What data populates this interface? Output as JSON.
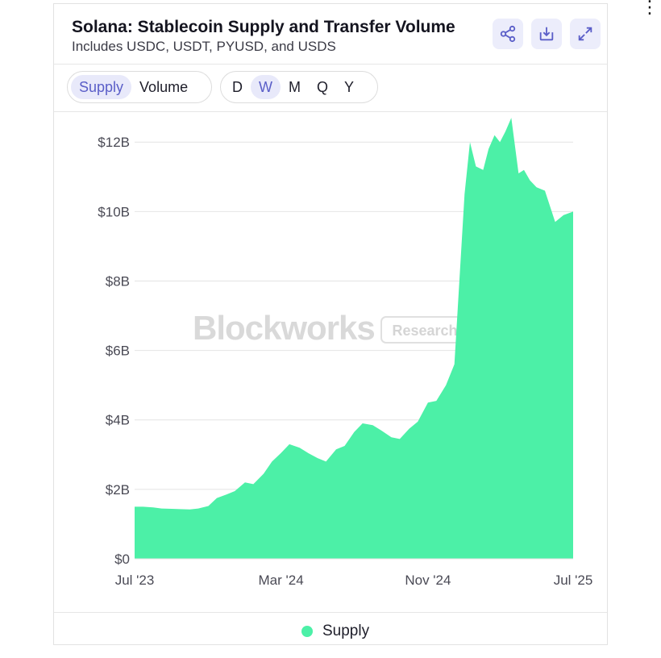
{
  "page_corner": "⋮",
  "header": {
    "title": "Solana: Stablecoin Supply and Transfer Volume",
    "subtitle": "Includes USDC, USDT, PYUSD, and USDS",
    "share_icon": "share-icon",
    "download_icon": "download-icon",
    "expand_icon": "expand-icon"
  },
  "controls": {
    "metric_tabs": [
      {
        "label": "Supply",
        "active": true
      },
      {
        "label": "Volume",
        "active": false
      }
    ],
    "interval_tabs": [
      {
        "label": "D",
        "active": false
      },
      {
        "label": "W",
        "active": true
      },
      {
        "label": "M",
        "active": false
      },
      {
        "label": "Q",
        "active": false
      },
      {
        "label": "Y",
        "active": false
      }
    ]
  },
  "watermark": {
    "brand": "Blockworks",
    "tag": "Research"
  },
  "colors": {
    "accent": "#5a5ec8",
    "series": "#4cf0a7",
    "tab_active_bg": "#e8e9fa",
    "icon_bg": "#ecedfb"
  },
  "chart_data": {
    "type": "area",
    "title": "Solana: Stablecoin Supply and Transfer Volume",
    "subtitle": "Includes USDC, USDT, PYUSD, and USDS",
    "xlabel": "",
    "ylabel": "",
    "x_ticks": [
      "Jul '23",
      "Mar '24",
      "Nov '24",
      "Jul '25"
    ],
    "y_ticks": [
      "$0",
      "$2B",
      "$4B",
      "$6B",
      "$8B",
      "$10B",
      "$12B"
    ],
    "y_unit": "billion USD",
    "ylim": [
      0,
      12.4
    ],
    "grid": "horizontal",
    "legend_position": "bottom-center",
    "series": [
      {
        "name": "Supply",
        "x": [
          "2023-07-01",
          "2023-07-15",
          "2023-08-01",
          "2023-08-15",
          "2023-09-01",
          "2023-09-15",
          "2023-10-01",
          "2023-10-15",
          "2023-11-01",
          "2023-11-15",
          "2023-12-01",
          "2023-12-15",
          "2024-01-01",
          "2024-01-15",
          "2024-02-01",
          "2024-02-15",
          "2024-03-01",
          "2024-03-15",
          "2024-04-01",
          "2024-04-15",
          "2024-05-01",
          "2024-05-15",
          "2024-06-01",
          "2024-06-15",
          "2024-07-01",
          "2024-07-15",
          "2024-08-01",
          "2024-08-15",
          "2024-09-01",
          "2024-09-15",
          "2024-10-01",
          "2024-10-15",
          "2024-11-01",
          "2024-11-15",
          "2024-12-01",
          "2024-12-15",
          "2025-01-01",
          "2025-01-10",
          "2025-01-20",
          "2025-02-01",
          "2025-02-10",
          "2025-02-20",
          "2025-03-01",
          "2025-03-10",
          "2025-03-20",
          "2025-04-01",
          "2025-04-10",
          "2025-04-20",
          "2025-05-01",
          "2025-05-15",
          "2025-06-01",
          "2025-06-15",
          "2025-07-01"
        ],
        "values": [
          1.5,
          1.5,
          1.48,
          1.45,
          1.44,
          1.43,
          1.42,
          1.45,
          1.52,
          1.75,
          1.85,
          1.95,
          2.2,
          2.15,
          2.45,
          2.8,
          3.05,
          3.3,
          3.2,
          3.05,
          2.9,
          2.8,
          3.15,
          3.25,
          3.65,
          3.9,
          3.85,
          3.7,
          3.5,
          3.45,
          3.75,
          3.95,
          4.5,
          4.55,
          5.0,
          5.6,
          10.5,
          12.0,
          11.3,
          11.2,
          11.8,
          12.2,
          12.0,
          12.3,
          12.7,
          11.1,
          11.2,
          10.9,
          10.7,
          10.6,
          9.7,
          9.9,
          10.0
        ]
      }
    ]
  }
}
